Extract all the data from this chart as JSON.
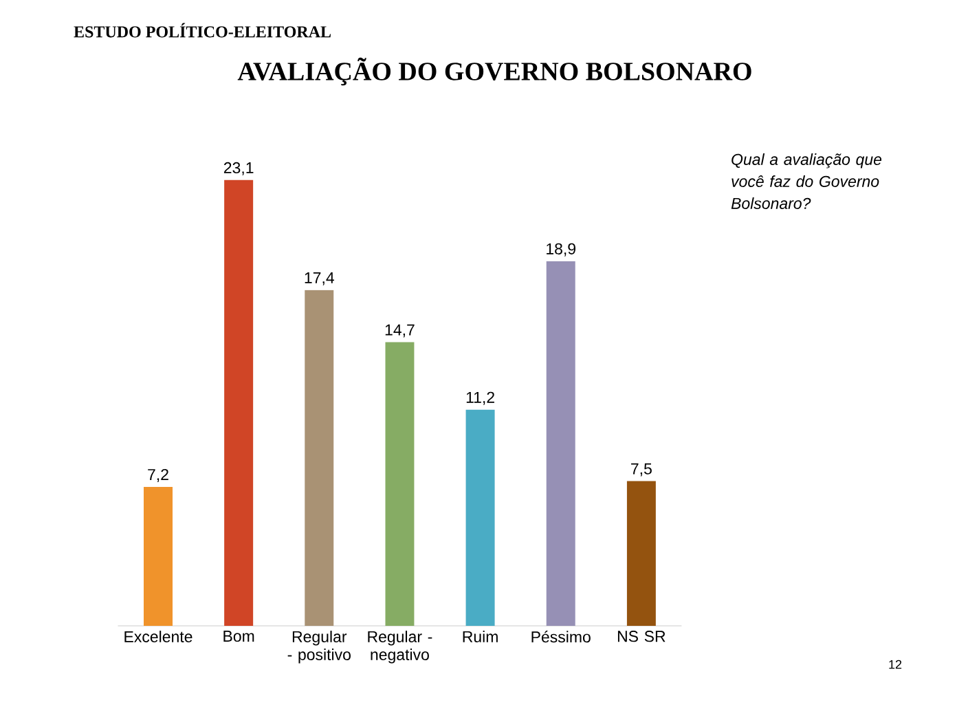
{
  "chart_data": {
    "type": "bar",
    "title": "AVALIAÇÃO DO GOVERNO BOLSONARO",
    "subtitle": "ESTUDO POLÍTICO-ELEITORAL",
    "categories": [
      "Excelente",
      "Bom",
      "Regular - positivo",
      "Regular - negativo",
      "Ruim",
      "Péssimo",
      "NS SR"
    ],
    "values": [
      7.2,
      23.1,
      17.4,
      14.7,
      11.2,
      18.9,
      7.5
    ],
    "value_labels": [
      "7,2",
      "23,1",
      "17,4",
      "14,7",
      "11,2",
      "18,9",
      "7,5"
    ],
    "colors": [
      "#f0932b",
      "#d04526",
      "#a99274",
      "#86ac64",
      "#4aacc5",
      "#9690b5",
      "#94530f"
    ],
    "annotations": [
      "Qual a avaliação que você faz do Governo Bolsonaro?",
      "12"
    ]
  }
}
